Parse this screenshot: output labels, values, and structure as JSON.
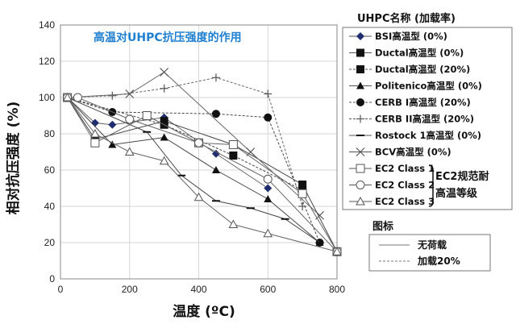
{
  "chart_data": {
    "type": "line",
    "title": "高温对UHPC抗压强度的作用",
    "xlabel": "温度 (ºC)",
    "ylabel": "相对抗压强度 (%)",
    "xlim": [
      0,
      800
    ],
    "ylim": [
      0,
      140
    ],
    "xticks": [
      0,
      200,
      400,
      600,
      800
    ],
    "yticks": [
      0,
      20,
      40,
      60,
      80,
      100,
      120,
      140
    ],
    "grid": true,
    "legend": {
      "title": "UHPC名称 (加载率)",
      "placement": "right",
      "ec2_group_label": [
        "EC2规范耐",
        "高温等级"
      ]
    },
    "line_legend": {
      "title": "图标",
      "items": [
        {
          "label": "无荷载",
          "style": "solid"
        },
        {
          "label": "加载20%",
          "style": "dashed"
        }
      ]
    },
    "series": [
      {
        "name": "BSI高温型 (0%)",
        "marker": "diamond",
        "style": "solid",
        "color": "#1f2d6e",
        "x": [
          20,
          100,
          150,
          300,
          450,
          600
        ],
        "y": [
          100,
          86,
          85,
          89,
          69,
          50
        ]
      },
      {
        "name": "Ductal高温型 (0%)",
        "marker": "square",
        "style": "solid",
        "color": "#111111",
        "x": [
          20,
          100,
          300,
          500,
          700,
          800
        ],
        "y": [
          100,
          77,
          87,
          74,
          52,
          15
        ]
      },
      {
        "name": "Ductal高温型 (20%)",
        "marker": "square",
        "style": "dashed",
        "color": "#111111",
        "x": [
          20,
          300,
          500,
          700
        ],
        "y": [
          100,
          85,
          68,
          49
        ]
      },
      {
        "name": "Politenico高温型 (0%)",
        "marker": "triangle",
        "style": "solid",
        "color": "#111111",
        "x": [
          20,
          150,
          300,
          450,
          600,
          750
        ],
        "y": [
          100,
          74,
          78,
          60,
          44,
          20
        ]
      },
      {
        "name": "CERB I高温型 (20%)",
        "marker": "circle",
        "style": "dashed",
        "color": "#111111",
        "x": [
          20,
          150,
          450,
          600,
          750
        ],
        "y": [
          100,
          92,
          91,
          89,
          20
        ]
      },
      {
        "name": "CERB II高温型 (20%)",
        "marker": "plus",
        "style": "dashed",
        "color": "#555555",
        "x": [
          20,
          150,
          300,
          450,
          600,
          700
        ],
        "y": [
          100,
          101,
          105,
          111,
          102,
          40
        ]
      },
      {
        "name": "Rostock 1高温型 (0%)",
        "marker": "dash",
        "style": "solid",
        "color": "#111111",
        "x": [
          20,
          250,
          350,
          450,
          550,
          650,
          750
        ],
        "y": [
          100,
          81,
          57,
          43,
          39,
          33,
          20
        ]
      },
      {
        "name": "BCV高温型 (0%)",
        "marker": "x",
        "style": "solid",
        "color": "#555555",
        "x": [
          20,
          200,
          300,
          550,
          750
        ],
        "y": [
          100,
          102,
          114,
          70,
          35
        ]
      },
      {
        "name": "EC2 Class 1",
        "marker": "open-square",
        "style": "solid",
        "color": "#555555",
        "x": [
          20,
          100,
          250,
          400,
          500,
          700,
          800
        ],
        "y": [
          100,
          75,
          90,
          75,
          74,
          47,
          15
        ]
      },
      {
        "name": "EC2 Class 2",
        "marker": "open-circle",
        "style": "solid",
        "color": "#555555",
        "x": [
          20,
          50,
          200,
          400,
          600,
          800
        ],
        "y": [
          100,
          100,
          88,
          75,
          55,
          15
        ]
      },
      {
        "name": "EC2 Class 3",
        "marker": "open-triangle",
        "style": "solid",
        "color": "#555555",
        "x": [
          20,
          100,
          200,
          300,
          400,
          500,
          600,
          800
        ],
        "y": [
          100,
          80,
          70,
          65,
          45,
          30,
          25,
          15
        ]
      }
    ]
  }
}
